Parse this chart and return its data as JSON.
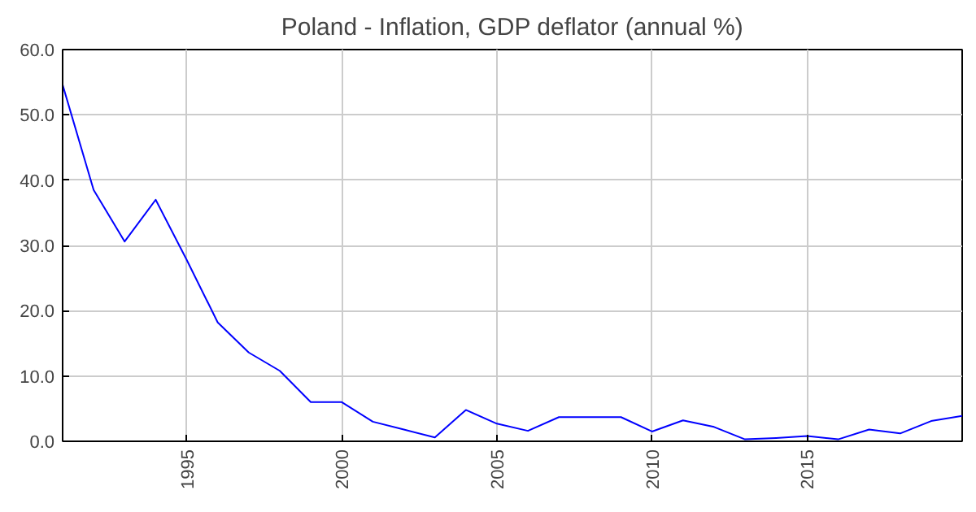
{
  "chart_data": {
    "type": "line",
    "title": "Poland - Inflation, GDP deflator (annual %)",
    "x": [
      1991,
      1992,
      1993,
      1994,
      1995,
      1996,
      1997,
      1998,
      1999,
      2000,
      2001,
      2002,
      2003,
      2004,
      2005,
      2006,
      2007,
      2008,
      2009,
      2010,
      2011,
      2012,
      2013,
      2014,
      2015,
      2016,
      2017,
      2018,
      2019,
      2020
    ],
    "series": [
      {
        "color": "#0000ff",
        "values": [
          54.6,
          38.5,
          30.6,
          37.0,
          27.8,
          18.2,
          13.6,
          10.8,
          6.0,
          6.0,
          3.0,
          1.8,
          0.6,
          4.8,
          2.7,
          1.6,
          3.7,
          3.7,
          3.7,
          1.5,
          3.2,
          2.2,
          0.3,
          0.5,
          0.8,
          0.3,
          1.8,
          1.2,
          3.1,
          3.9
        ]
      }
    ],
    "xlim": [
      1991,
      2020
    ],
    "xticks": [
      1995,
      2000,
      2005,
      2010,
      2015
    ],
    "ylim": [
      0,
      60
    ],
    "yticks": [
      {
        "value": 0,
        "label": "0.0"
      },
      {
        "value": 10,
        "label": "10.0"
      },
      {
        "value": 20,
        "label": "20.0"
      },
      {
        "value": 30,
        "label": "30.0"
      },
      {
        "value": 40,
        "label": "40.0"
      },
      {
        "value": 50,
        "label": "50.0"
      },
      {
        "value": 60,
        "label": "60.0"
      }
    ],
    "grid": true,
    "marker": "none",
    "line_style": "solid"
  }
}
